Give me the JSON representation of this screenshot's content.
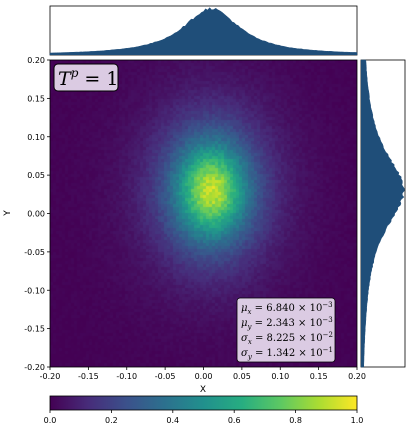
{
  "chart_data": {
    "type": "heatmap",
    "subtype": "2d-histogram with marginal histograms",
    "title_annotation": {
      "base": "T",
      "sup": "p",
      "rest": " = 1"
    },
    "xlabel": "X",
    "ylabel": "Y",
    "xlim": [
      -0.2,
      0.2
    ],
    "ylim": [
      -0.2,
      0.2
    ],
    "xticks": [
      "-0.20",
      "-0.15",
      "-0.10",
      "-0.05",
      "0.00",
      "0.05",
      "0.10",
      "0.15",
      "0.20"
    ],
    "yticks": [
      "0.20",
      "0.15",
      "0.10",
      "0.05",
      "0.00",
      "-0.05",
      "-0.10",
      "-0.15",
      "-0.20"
    ],
    "colorbar": {
      "range": [
        0.0,
        1.0
      ],
      "ticks": [
        "0.0",
        "0.2",
        "0.4",
        "0.6",
        "0.8",
        "1.0"
      ],
      "colormap": "viridis"
    },
    "distribution": {
      "mu_x": 0.00684,
      "mu_y": 0.002343,
      "sigma_x": 0.08225,
      "sigma_y": 0.1342,
      "peak_x": 0.01,
      "peak_y": 0.03
    },
    "stats_box": [
      {
        "sym": "μ",
        "sub": "x",
        "mant": "6.840",
        "exp": "−3"
      },
      {
        "sym": "μ",
        "sub": "y",
        "mant": "2.343",
        "exp": "−3"
      },
      {
        "sym": "σ",
        "sub": "x",
        "mant": "8.225",
        "exp": "−2"
      },
      {
        "sym": "σ",
        "sub": "y",
        "mant": "1.342",
        "exp": "−1"
      }
    ],
    "marginal_color": "#1f4e79",
    "legend_placement": "bottom-right"
  }
}
